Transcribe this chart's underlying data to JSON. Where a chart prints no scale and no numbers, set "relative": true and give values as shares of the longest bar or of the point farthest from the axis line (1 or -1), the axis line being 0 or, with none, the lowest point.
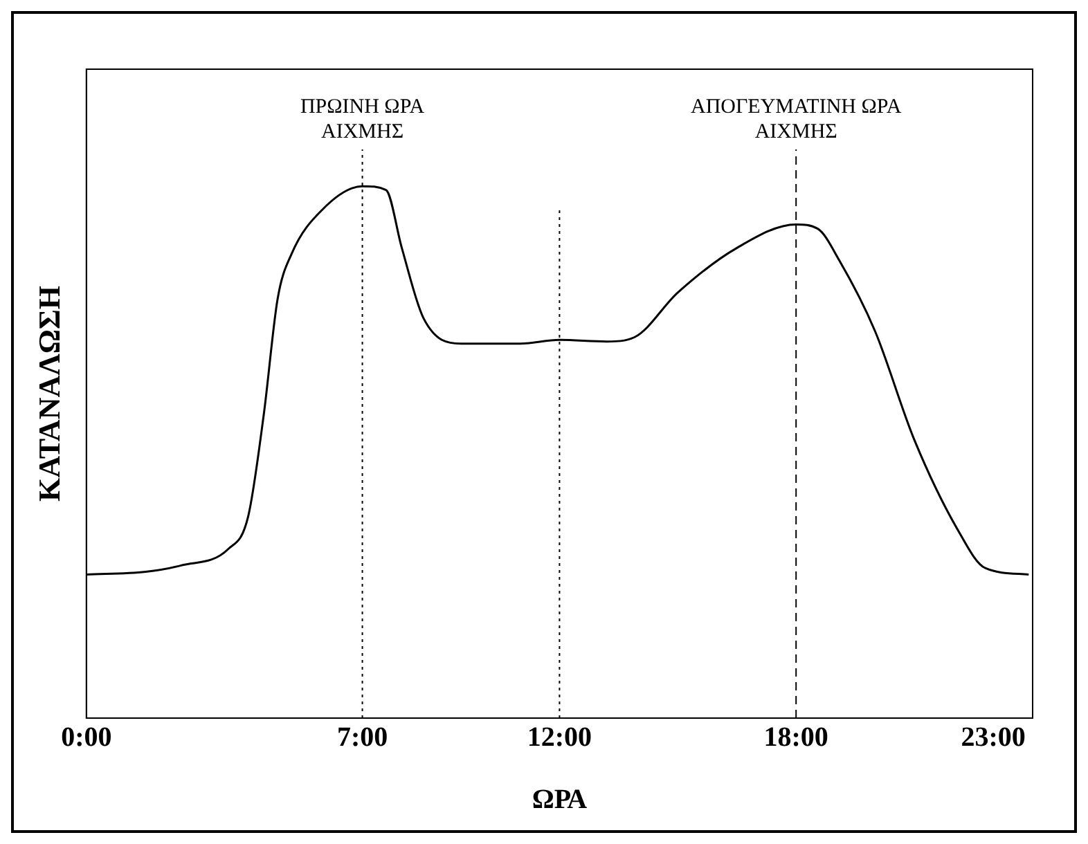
{
  "chart_data": {
    "type": "line",
    "relative": true,
    "xlabel": "ΩΡΑ",
    "ylabel": "ΚΑΤΑΝΑΛΩΣΗ",
    "xlim": [
      0,
      24
    ],
    "xticks": [
      {
        "value": 0,
        "label": "0:00"
      },
      {
        "value": 7,
        "label": "7:00"
      },
      {
        "value": 12,
        "label": "12:00"
      },
      {
        "value": 18,
        "label": "18:00"
      },
      {
        "value": 23,
        "label": "23:00"
      }
    ],
    "x": [
      0,
      1.5,
      2.4,
      3.6,
      4.1,
      4.5,
      4.85,
      5.2,
      6,
      7,
      7.6,
      8,
      8.55,
      9.5,
      11,
      12,
      13.2,
      13.9,
      15,
      16.5,
      18,
      18.55,
      19.1,
      20,
      21,
      22.1,
      22.8,
      23.9
    ],
    "series": [
      {
        "color": "#000000",
        "values": [
          0.27,
          0.275,
          0.287,
          0.318,
          0.378,
          0.571,
          0.788,
          0.872,
          0.957,
          1,
          0.993,
          0.884,
          0.752,
          0.704,
          0.704,
          0.711,
          0.708,
          0.716,
          0.8,
          0.884,
          0.928,
          0.92,
          0.86,
          0.728,
          0.523,
          0.354,
          0.282,
          0.27
        ]
      }
    ],
    "ref_lines": [
      {
        "axis": "x",
        "value": 7,
        "label": "ΠΡΩΙΝΗ ΩΡΑ\nΑΙΧΜΗΣ",
        "line_style": "dotted"
      },
      {
        "axis": "x",
        "value": 12,
        "label": null,
        "line_style": "dotted"
      },
      {
        "axis": "x",
        "value": 18,
        "label": "ΑΠΟΓΕΥΜΑΤΙΝΗ ΩΡΑ\nΑΙΧΜΗΣ",
        "line_style": "dashed"
      }
    ],
    "grid": false,
    "legend": false,
    "marker": "none",
    "line_style": "solid"
  }
}
